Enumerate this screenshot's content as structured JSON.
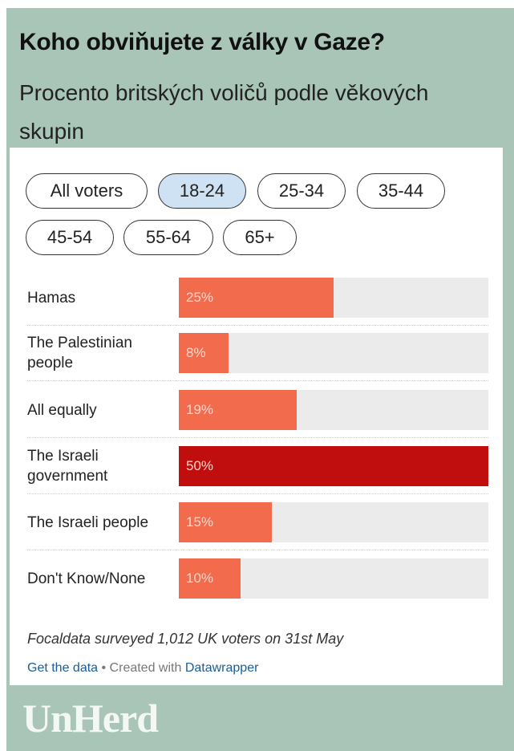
{
  "title": "Koho obviňujete z války v Gaze?",
  "subtitle": "Procento britských voličů podle věkových skupin",
  "filters": [
    {
      "label": "All voters",
      "selected": false
    },
    {
      "label": "18-24",
      "selected": true
    },
    {
      "label": "25-34",
      "selected": false
    },
    {
      "label": "35-44",
      "selected": false
    },
    {
      "label": "45-54",
      "selected": false
    },
    {
      "label": "55-64",
      "selected": false
    },
    {
      "label": "65+",
      "selected": false
    }
  ],
  "chart_data": {
    "type": "bar",
    "orientation": "horizontal",
    "categories": [
      "Hamas",
      "The Palestinian people",
      "All equally",
      "The Israeli government",
      "The Israeli people",
      "Don't Know/None"
    ],
    "values": [
      25,
      8,
      19,
      50,
      15,
      10
    ],
    "value_labels": [
      "25%",
      "8%",
      "19%",
      "50%",
      "15%",
      "10%"
    ],
    "xlim": [
      0,
      50
    ],
    "grid": false,
    "colors": {
      "default": "#f26b4c",
      "highlight": "#c00d0d",
      "track": "#ebebeb"
    }
  },
  "note": "Focaldata surveyed 1,012 UK voters on 31st May",
  "footer": {
    "get_data": "Get the data",
    "separator": " • Created with ",
    "tool": "Datawrapper"
  },
  "brand": "UnHerd",
  "colors": {
    "background": "#a9c5b8",
    "accent": "#c00d0d",
    "bar": "#f26b4c",
    "selected_pill": "#cfe2f3"
  }
}
